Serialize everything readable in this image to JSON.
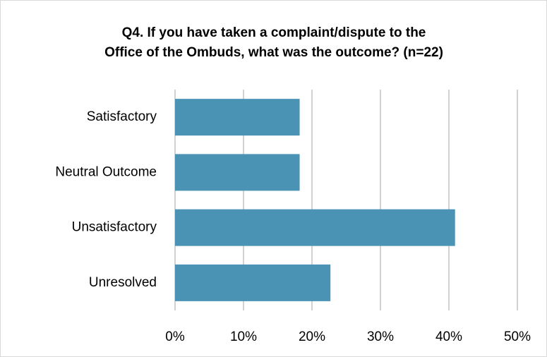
{
  "chart_data": {
    "type": "bar",
    "orientation": "horizontal",
    "title": [
      "Q4. If you have taken a complaint/dispute to the",
      "Office of the Ombuds, what was the outcome? (n=22)"
    ],
    "categories": [
      "Satisfactory",
      "Neutral Outcome",
      "Unsatisfactory",
      "Unresolved"
    ],
    "values": [
      18.2,
      18.2,
      40.9,
      22.7
    ],
    "color": "#4a93b5",
    "xlim": [
      0,
      50
    ],
    "xticks": [
      {
        "value": 0,
        "label": "0%"
      },
      {
        "value": 10,
        "label": "10%"
      },
      {
        "value": 20,
        "label": "20%"
      },
      {
        "value": 30,
        "label": "30%"
      },
      {
        "value": 40,
        "label": "40%"
      },
      {
        "value": 50,
        "label": "50%"
      }
    ],
    "grid": true
  }
}
